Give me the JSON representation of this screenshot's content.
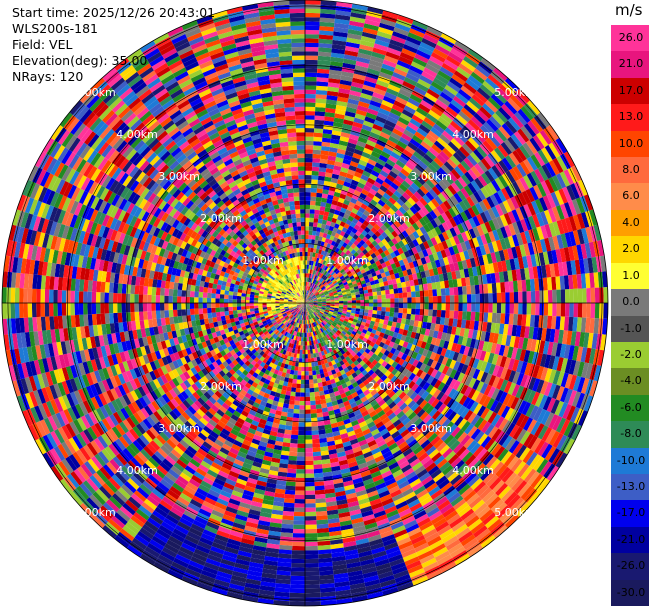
{
  "info": {
    "start_time": "Start time: 2025/12/26 20:43:01",
    "instrument": "WLS200s-181",
    "field": "Field: VEL",
    "elevation": "Elevation(deg): 35.00",
    "nrays": "NRays: 120"
  },
  "colorbar": {
    "unit": "m/s",
    "ticks": [
      "26.0",
      "21.0",
      "17.0",
      "13.0",
      "10.0",
      "8.0",
      "6.0",
      "4.0",
      "2.0",
      "1.0",
      "0.0",
      "-1.0",
      "-2.0",
      "-4.0",
      "-6.0",
      "-8.0",
      "-10.0",
      "-13.0",
      "-17.0",
      "-21.0",
      "-26.0",
      "-30.0"
    ],
    "colors": [
      "#ff3399",
      "#e8157e",
      "#cc0000",
      "#ff1a1a",
      "#ff4500",
      "#ff6a3d",
      "#ff8c4a",
      "#ff9f00",
      "#ffd700",
      "#ffff33",
      "#7a7a7a",
      "#555555",
      "#9acd32",
      "#6b8e23",
      "#228b22",
      "#2e8b57",
      "#1e7ad6",
      "#3d5ec6",
      "#0000ee",
      "#0000a0",
      "#191970",
      "#1a1a5e"
    ]
  },
  "range_rings": {
    "labels": [
      "1.00km",
      "2.00km",
      "3.00km",
      "4.00km",
      "5.00km"
    ],
    "max_range_km": 5.1
  },
  "scan": {
    "n_rays": 120,
    "gates_per_km": 14
  }
}
